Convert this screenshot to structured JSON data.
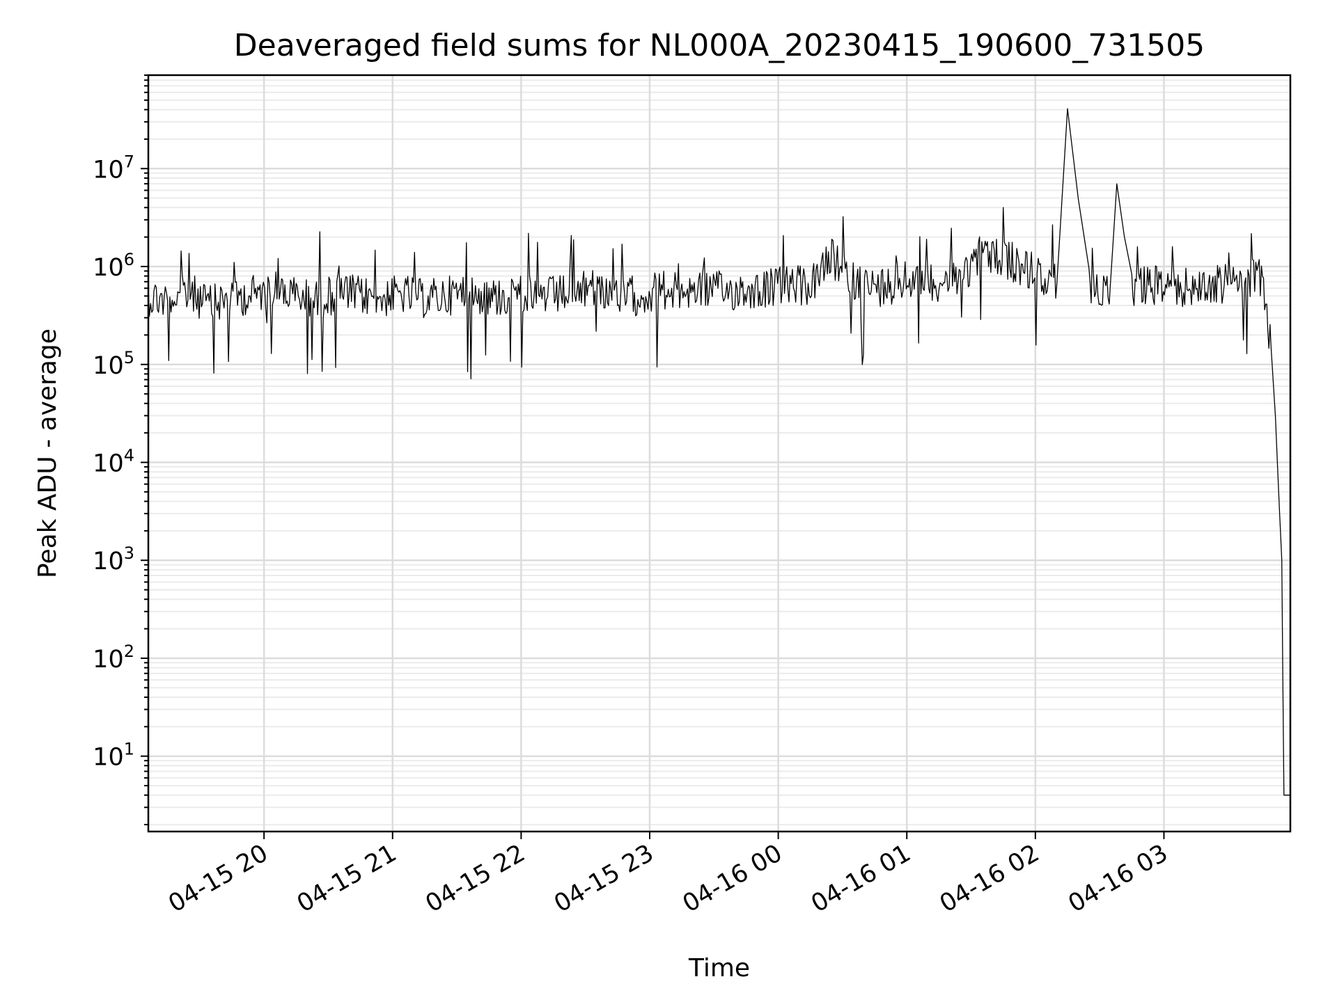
{
  "chart_data": {
    "type": "line",
    "title": "Deaveraged field sums for NL000A_20230415_190600_731505",
    "xlabel": "Time",
    "ylabel": "Peak ADU - average",
    "yscale": "log",
    "grid": true,
    "xlim": [
      "04-15 19:06",
      "04-16 03:59"
    ],
    "ylim": [
      1.7,
      90000000
    ],
    "x_ticks": [
      "04-15 20",
      "04-15 21",
      "04-15 22",
      "04-15 23",
      "04-16 00",
      "04-16 01",
      "04-16 02",
      "04-16 03"
    ],
    "y_ticks": [
      {
        "value": 10,
        "base": "10",
        "exp": "1"
      },
      {
        "value": 100,
        "base": "10",
        "exp": "2"
      },
      {
        "value": 1000,
        "base": "10",
        "exp": "3"
      },
      {
        "value": 10000,
        "base": "10",
        "exp": "4"
      },
      {
        "value": 100000,
        "base": "10",
        "exp": "5"
      },
      {
        "value": 1000000,
        "base": "10",
        "exp": "6"
      },
      {
        "value": 10000000,
        "base": "10",
        "exp": "7"
      }
    ],
    "series": [
      {
        "color": "#000000",
        "x": [
          "04-15 19:06",
          "04-15 19:15",
          "04-15 19:25",
          "04-15 19:35",
          "04-15 19:45",
          "04-15 19:55",
          "04-15 20:05",
          "04-15 20:15",
          "04-15 20:25",
          "04-15 20:35",
          "04-15 20:45",
          "04-15 20:55",
          "04-15 21:05",
          "04-15 21:15",
          "04-15 21:25",
          "04-15 21:35",
          "04-15 21:45",
          "04-15 21:55",
          "04-15 22:05",
          "04-15 22:15",
          "04-15 22:25",
          "04-15 22:35",
          "04-15 22:45",
          "04-15 22:55",
          "04-15 23:05",
          "04-15 23:15",
          "04-15 23:25",
          "04-15 23:35",
          "04-15 23:45",
          "04-15 23:55",
          "04-16 00:05",
          "04-16 00:15",
          "04-16 00:25",
          "04-16 00:35",
          "04-16 00:45",
          "04-16 00:55",
          "04-16 01:05",
          "04-16 01:15",
          "04-16 01:25",
          "04-16 01:35",
          "04-16 01:45",
          "04-16 01:55",
          "04-16 02:05",
          "04-16 02:10",
          "04-16 02:15",
          "04-16 02:25",
          "04-16 02:35",
          "04-16 02:38",
          "04-16 02:45",
          "04-16 02:55",
          "04-16 03:05",
          "04-16 03:15",
          "04-16 03:25",
          "04-16 03:35",
          "04-16 03:45",
          "04-16 03:48",
          "04-16 03:50",
          "04-16 03:52",
          "04-16 03:54",
          "04-16 03:55",
          "04-16 03:56",
          "04-16 03:59"
        ],
        "y": [
          500000,
          450000,
          550000,
          400000,
          480000,
          520000,
          600000,
          500000,
          450000,
          550000,
          500000,
          480000,
          520000,
          470000,
          500000,
          550000,
          480000,
          500000,
          520000,
          500000,
          550000,
          600000,
          520000,
          500000,
          580000,
          560000,
          600000,
          550000,
          580000,
          600000,
          650000,
          620000,
          1200000,
          700000,
          600000,
          680000,
          750000,
          700000,
          800000,
          1300000,
          1200000,
          1000000,
          700000,
          650000,
          41000000,
          600000,
          650000,
          7000000,
          600000,
          650000,
          620000,
          600000,
          650000,
          700000,
          800000,
          300000,
          150000,
          30000,
          3000,
          1000,
          4,
          4
        ]
      }
    ]
  }
}
